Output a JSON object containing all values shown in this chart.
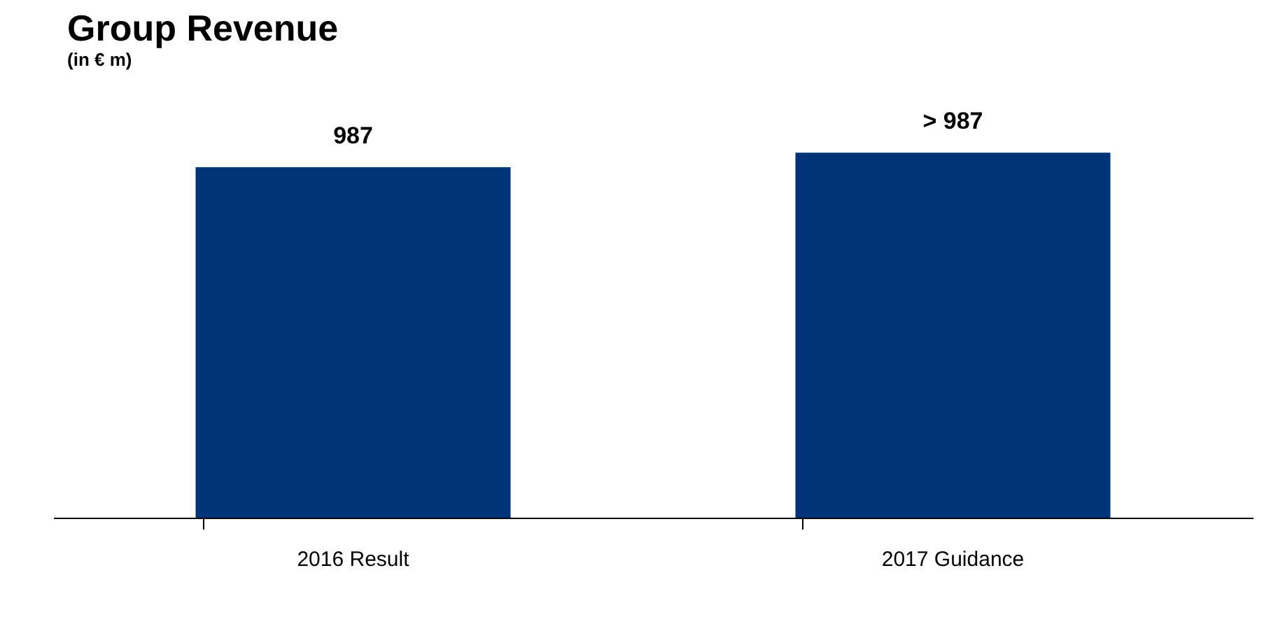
{
  "chart_data": {
    "type": "bar",
    "title": "Group Revenue",
    "subtitle": "(in € m)",
    "categories": [
      "2016 Result",
      "2017 Guidance"
    ],
    "values": [
      987,
      1028
    ],
    "value_labels": [
      "987",
      "> 987"
    ],
    "color": "#003478"
  }
}
